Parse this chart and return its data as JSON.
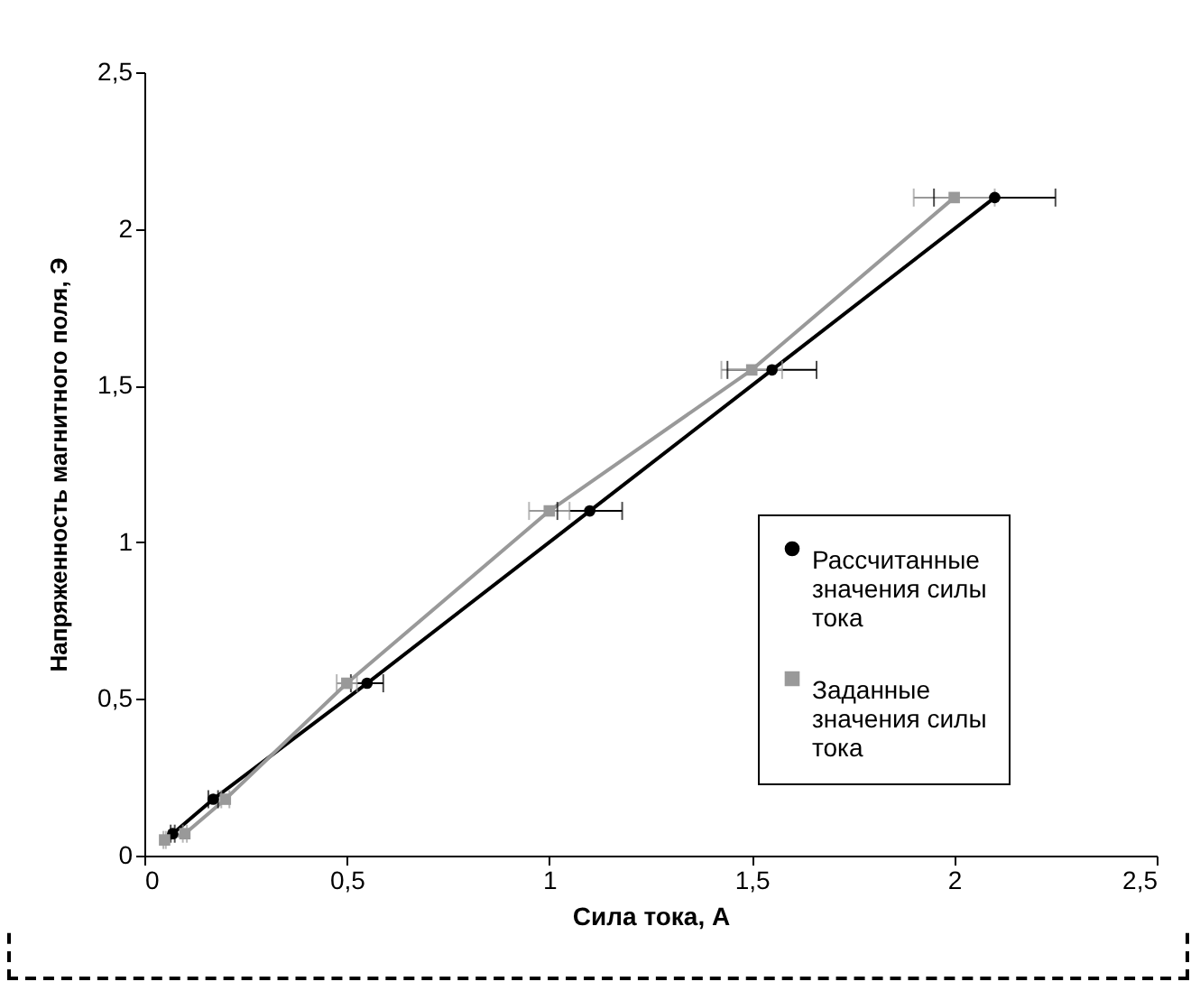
{
  "chart_data": {
    "type": "line",
    "xlabel": "Сила тока, А",
    "ylabel": "Напряженность магнитного поля, Э",
    "xlim": [
      0,
      2.5
    ],
    "ylim": [
      0,
      2.5
    ],
    "xticks": [
      0,
      {
        "value": 0.5,
        "label": "0,5"
      },
      1,
      {
        "value": 1.5,
        "label": "1,5"
      },
      2,
      {
        "value": 2.5,
        "label": "2,5"
      }
    ],
    "yticks": [
      0,
      {
        "value": 0.5,
        "label": "0,5"
      },
      1,
      {
        "value": 1.5,
        "label": "1,5"
      },
      2,
      {
        "value": 2.5,
        "label": "2,5"
      }
    ],
    "grid": false,
    "legend": "bottom right",
    "line_style": "solid",
    "series": [
      {
        "name": "Рассчитанные значения силы тока",
        "color": "#000000",
        "marker": "circle",
        "x": [
          0.07,
          0.17,
          0.55,
          1.1,
          1.55,
          2.1
        ],
        "values": [
          0.07,
          0.18,
          0.55,
          1.1,
          1.55,
          2.1
        ],
        "xerrors": [
          0.005,
          0.012,
          0.04,
          0.08,
          0.11,
          0.15
        ]
      },
      {
        "name": "Заданные значения силы тока",
        "color": "#999999",
        "marker": "square",
        "x": [
          0.05,
          0.1,
          0.2,
          0.5,
          1.0,
          1.5,
          2.0
        ],
        "values": [
          0.05,
          0.07,
          0.18,
          0.55,
          1.1,
          1.55,
          2.1
        ],
        "xerrors": [
          0.003,
          0.005,
          0.01,
          0.025,
          0.05,
          0.075,
          0.1
        ]
      }
    ]
  }
}
